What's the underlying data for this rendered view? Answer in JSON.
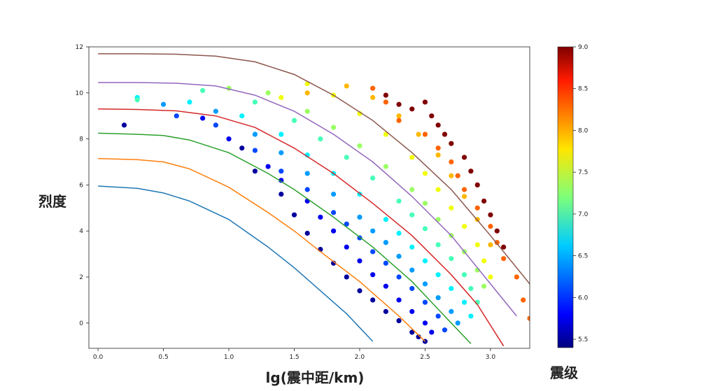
{
  "chart_data": {
    "type": "scatter",
    "title": "",
    "xlabel": "lg(震中距/km)",
    "ylabel": "烈度",
    "colorbar_label": "震级",
    "xlim": [
      -0.07,
      3.3
    ],
    "ylim": [
      -1.1,
      12
    ],
    "x_ticks": [
      "0.0",
      "0.5",
      "1.0",
      "1.5",
      "2.0",
      "2.5",
      "3.0"
    ],
    "x_tick_values": [
      0.0,
      0.5,
      1.0,
      1.5,
      2.0,
      2.5,
      3.0
    ],
    "y_ticks": [
      "0",
      "2",
      "4",
      "6",
      "8",
      "10",
      "12"
    ],
    "y_tick_values": [
      0,
      2,
      4,
      6,
      8,
      10,
      12
    ],
    "colorbar": {
      "colormap": "jet",
      "range": [
        5.4,
        9.0
      ],
      "ticks": [
        "5.5",
        "6.0",
        "6.5",
        "7.0",
        "7.5",
        "8.0",
        "8.5",
        "9.0"
      ],
      "tick_values": [
        5.5,
        6.0,
        6.5,
        7.0,
        7.5,
        8.0,
        8.5,
        9.0
      ]
    },
    "grid": false,
    "legend": "none",
    "curves": [
      {
        "color": "#1f77b4",
        "x": [
          0.0,
          0.3,
          0.5,
          0.7,
          1.0,
          1.3,
          1.5,
          1.7,
          1.9,
          2.1
        ],
        "y": [
          5.95,
          5.85,
          5.65,
          5.3,
          4.5,
          3.3,
          2.4,
          1.4,
          0.4,
          -0.8
        ]
      },
      {
        "color": "#ff7f0e",
        "x": [
          0.0,
          0.3,
          0.5,
          0.7,
          1.0,
          1.3,
          1.5,
          1.7,
          2.0,
          2.3,
          2.5
        ],
        "y": [
          7.15,
          7.1,
          7.0,
          6.7,
          5.9,
          4.8,
          4.0,
          3.1,
          1.8,
          0.3,
          -0.8
        ]
      },
      {
        "color": "#2ca02c",
        "x": [
          0.0,
          0.3,
          0.5,
          0.7,
          1.0,
          1.3,
          1.5,
          1.8,
          2.1,
          2.4,
          2.6,
          2.85
        ],
        "y": [
          8.25,
          8.2,
          8.15,
          7.95,
          7.4,
          6.5,
          5.8,
          4.6,
          3.3,
          1.8,
          0.6,
          -0.9
        ]
      },
      {
        "color": "#d62728",
        "x": [
          0.0,
          0.3,
          0.6,
          0.9,
          1.2,
          1.5,
          1.8,
          2.1,
          2.4,
          2.7,
          2.9,
          3.1
        ],
        "y": [
          9.3,
          9.28,
          9.22,
          9.0,
          8.5,
          7.6,
          6.5,
          5.2,
          3.8,
          2.1,
          0.8,
          -1.0
        ]
      },
      {
        "color": "#9467bd",
        "x": [
          0.0,
          0.3,
          0.6,
          0.9,
          1.2,
          1.5,
          1.8,
          2.1,
          2.4,
          2.7,
          3.0,
          3.2
        ],
        "y": [
          10.45,
          10.45,
          10.42,
          10.3,
          9.9,
          9.2,
          8.2,
          7.0,
          5.5,
          3.8,
          1.7,
          0.3
        ]
      },
      {
        "color": "#8c564b",
        "x": [
          0.0,
          0.3,
          0.6,
          0.9,
          1.2,
          1.5,
          1.8,
          2.1,
          2.4,
          2.7,
          3.0,
          3.3
        ],
        "y": [
          11.7,
          11.7,
          11.68,
          11.6,
          11.35,
          10.8,
          9.9,
          8.8,
          7.4,
          5.8,
          3.8,
          1.7
        ]
      }
    ],
    "scatter_groups": [
      {
        "magnitude": 5.5,
        "x": [
          0.2,
          1.1,
          1.2,
          1.4,
          1.5,
          1.6,
          1.7,
          1.8,
          1.9,
          2.0,
          2.1,
          2.2,
          2.3,
          2.4,
          2.45,
          2.5
        ],
        "y": [
          8.6,
          7.6,
          6.6,
          5.6,
          4.7,
          3.9,
          3.2,
          2.6,
          2.0,
          1.4,
          1.0,
          0.5,
          0.1,
          -0.4,
          -0.6,
          -0.8
        ]
      },
      {
        "magnitude": 5.8,
        "x": [
          0.8,
          1.0,
          1.3,
          1.4,
          1.6,
          1.7,
          1.8,
          1.9,
          2.0,
          2.1,
          2.2,
          2.3,
          2.4,
          2.5,
          2.55
        ],
        "y": [
          8.9,
          8.0,
          6.8,
          6.2,
          5.3,
          4.6,
          4.0,
          3.3,
          2.7,
          2.1,
          1.6,
          1.0,
          0.5,
          0.0,
          -0.4
        ]
      },
      {
        "magnitude": 6.1,
        "x": [
          0.6,
          0.9,
          1.2,
          1.4,
          1.6,
          1.8,
          1.9,
          2.0,
          2.1,
          2.2,
          2.3,
          2.4,
          2.5,
          2.6,
          2.65
        ],
        "y": [
          9.0,
          8.6,
          7.5,
          6.6,
          5.8,
          4.8,
          4.3,
          3.7,
          3.1,
          2.6,
          2.0,
          1.5,
          0.9,
          0.3,
          -0.3
        ]
      },
      {
        "magnitude": 6.4,
        "x": [
          0.5,
          0.9,
          1.2,
          1.4,
          1.6,
          1.8,
          2.0,
          2.1,
          2.2,
          2.3,
          2.4,
          2.5,
          2.6,
          2.7,
          2.75
        ],
        "y": [
          9.5,
          9.2,
          8.2,
          7.4,
          6.5,
          5.6,
          4.6,
          4.0,
          3.5,
          2.9,
          2.3,
          1.7,
          1.1,
          0.5,
          0.0
        ]
      },
      {
        "magnitude": 6.7,
        "x": [
          0.3,
          0.7,
          1.1,
          1.4,
          1.6,
          1.8,
          2.0,
          2.2,
          2.3,
          2.4,
          2.5,
          2.6,
          2.7,
          2.8,
          2.85
        ],
        "y": [
          9.8,
          9.6,
          9.0,
          8.2,
          7.3,
          6.5,
          5.6,
          4.5,
          3.9,
          3.3,
          2.7,
          2.1,
          1.5,
          0.9,
          0.3
        ]
      },
      {
        "magnitude": 7.0,
        "x": [
          0.3,
          0.8,
          1.2,
          1.5,
          1.7,
          1.9,
          2.1,
          2.3,
          2.4,
          2.5,
          2.6,
          2.7,
          2.8,
          2.85,
          2.9
        ],
        "y": [
          9.7,
          10.1,
          9.6,
          8.8,
          8.0,
          7.2,
          6.3,
          5.3,
          4.7,
          4.1,
          3.4,
          2.8,
          2.1,
          1.5,
          0.9
        ]
      },
      {
        "magnitude": 7.3,
        "x": [
          1.0,
          1.3,
          1.6,
          1.8,
          2.0,
          2.2,
          2.4,
          2.5,
          2.6,
          2.7,
          2.8,
          2.9,
          2.95
        ],
        "y": [
          10.2,
          10.0,
          9.2,
          8.5,
          7.7,
          6.8,
          5.8,
          5.2,
          4.5,
          3.8,
          3.1,
          2.3,
          1.6
        ]
      },
      {
        "magnitude": 7.6,
        "x": [
          1.4,
          1.6,
          1.8,
          2.0,
          2.2,
          2.4,
          2.5,
          2.6,
          2.7,
          2.8,
          2.9,
          2.95,
          3.0
        ],
        "y": [
          9.8,
          10.4,
          9.9,
          9.1,
          8.2,
          7.2,
          6.5,
          5.8,
          5.0,
          4.2,
          3.4,
          2.7,
          2.0
        ]
      },
      {
        "magnitude": 7.9,
        "x": [
          1.6,
          1.9,
          2.1,
          2.3,
          2.45,
          2.6,
          2.7,
          2.8,
          2.9,
          3.0
        ],
        "y": [
          10.0,
          10.3,
          9.8,
          9.0,
          8.2,
          7.3,
          6.4,
          5.5,
          4.5,
          3.4
        ]
      },
      {
        "magnitude": 8.2,
        "x": [
          2.1,
          2.2,
          2.3,
          2.5,
          2.6,
          2.7,
          2.75,
          2.8,
          2.9,
          3.0,
          3.05,
          3.1,
          3.2,
          3.25,
          3.3
        ],
        "y": [
          10.2,
          9.6,
          8.8,
          8.2,
          7.6,
          7.0,
          6.4,
          5.8,
          5.0,
          4.2,
          3.5,
          2.8,
          2.0,
          1.0,
          0.2
        ]
      },
      {
        "magnitude": 9.0,
        "x": [
          2.2,
          2.3,
          2.4,
          2.5,
          2.55,
          2.6,
          2.65,
          2.7,
          2.8,
          2.85,
          2.9,
          2.95,
          3.0,
          3.05,
          3.1
        ],
        "y": [
          9.9,
          9.5,
          9.3,
          9.6,
          9.0,
          8.6,
          8.2,
          7.8,
          7.2,
          6.6,
          6.0,
          5.3,
          4.7,
          4.0,
          3.3
        ]
      }
    ]
  }
}
